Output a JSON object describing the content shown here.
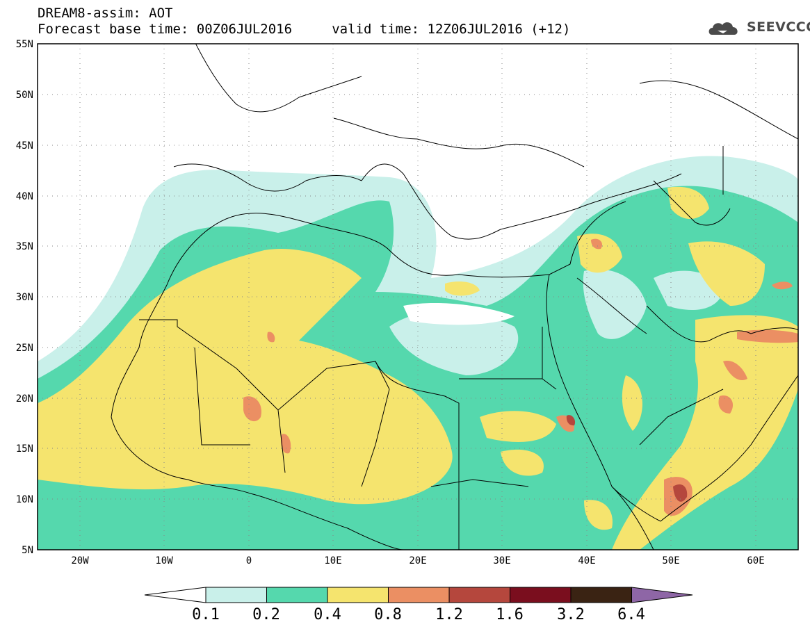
{
  "header": {
    "line1": "DREAM8-assim: AOT",
    "line2": "Forecast base time: 00Z06JUL2016     valid time: 12Z06JUL2016 (+12)"
  },
  "logo": {
    "text": "SEEVCCC",
    "icon": "cloud-logo-icon"
  },
  "map": {
    "lon_range": [
      -25,
      65
    ],
    "lat_range": [
      5,
      55
    ],
    "lat_ticks": [
      "55N",
      "50N",
      "45N",
      "40N",
      "35N",
      "30N",
      "25N",
      "20N",
      "15N",
      "10N",
      "5N"
    ],
    "lon_ticks": [
      "20W",
      "10W",
      "0",
      "10E",
      "20E",
      "30E",
      "40E",
      "50E",
      "60E"
    ],
    "grid": "dotted"
  },
  "colorbar": {
    "labels": [
      "0.1",
      "0.2",
      "0.4",
      "0.8",
      "1.2",
      "1.6",
      "3.2",
      "6.4"
    ],
    "colors": [
      "#ffffff",
      "#c9f0ea",
      "#55d8ad",
      "#f5e46e",
      "#eb8f63",
      "#b5473d",
      "#7a0e1e",
      "#3a2313",
      "#8e66a6"
    ]
  }
}
